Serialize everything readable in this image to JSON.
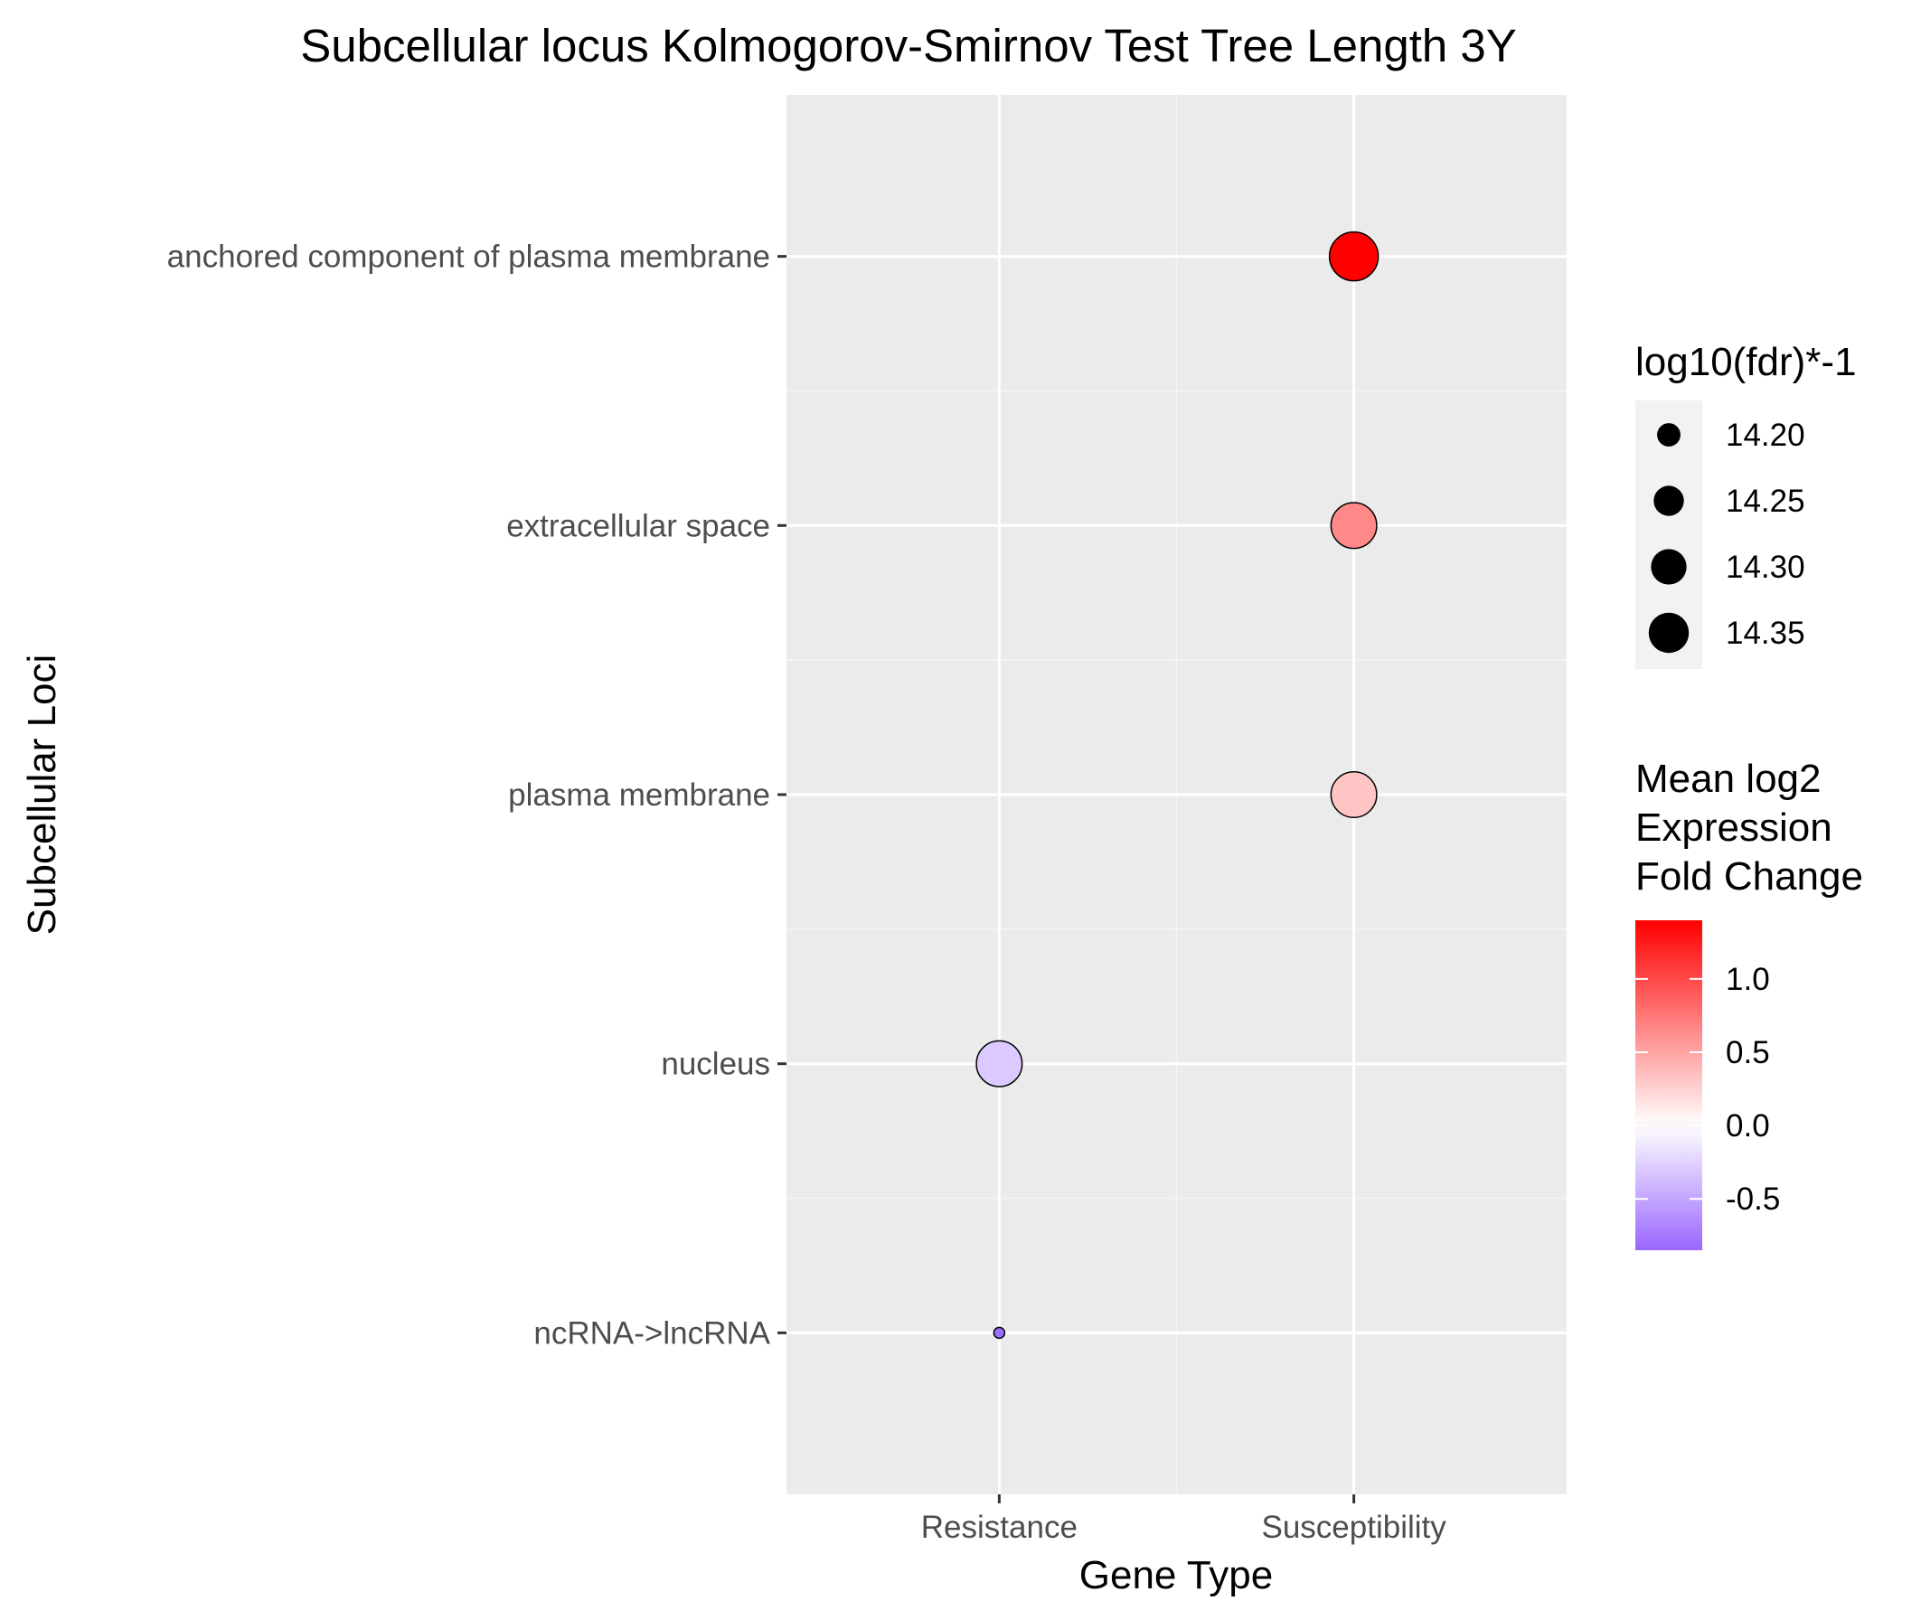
{
  "chart_data": {
    "type": "scatter",
    "title": "Subcellular locus Kolmogorov-Smirnov Test Tree Length 3Y",
    "xlabel": "Gene Type",
    "ylabel": "Subcellular Loci",
    "x_categories": [
      "Resistance",
      "Susceptibility"
    ],
    "y_categories": [
      "anchored component of plasma membrane",
      "extracellular space",
      "plasma membrane",
      "nucleus",
      "ncRNA->lncRNA"
    ],
    "points": [
      {
        "x": "Susceptibility",
        "y": "anchored component of plasma membrane",
        "size": 14.38,
        "color": 1.4
      },
      {
        "x": "Susceptibility",
        "y": "extracellular space",
        "size": 14.35,
        "color": 0.65
      },
      {
        "x": "Susceptibility",
        "y": "plasma membrane",
        "size": 14.35,
        "color": 0.32
      },
      {
        "x": "Resistance",
        "y": "nucleus",
        "size": 14.35,
        "color": -0.3
      },
      {
        "x": "Resistance",
        "y": "ncRNA->lncRNA",
        "size": 14.15,
        "color": -0.8
      }
    ],
    "size_legend": {
      "title": "log10(fdr)*-1",
      "values": [
        14.2,
        14.25,
        14.3,
        14.35
      ],
      "labels": [
        "14.20",
        "14.25",
        "14.30",
        "14.35"
      ]
    },
    "color_legend": {
      "title": [
        "Mean log2",
        "Expression",
        "Fold Change"
      ],
      "range": [
        -0.85,
        1.4
      ],
      "ticks": [
        1.0,
        0.5,
        0.0,
        -0.5
      ],
      "tick_labels": [
        "1.0",
        "0.5",
        "0.0",
        "-0.5"
      ],
      "low_color": "#9966ff",
      "mid_color": "#ffffff",
      "high_color": "#ff0000"
    },
    "panel_background": "#ebebeb",
    "grid": true,
    "legend_position": "right"
  }
}
